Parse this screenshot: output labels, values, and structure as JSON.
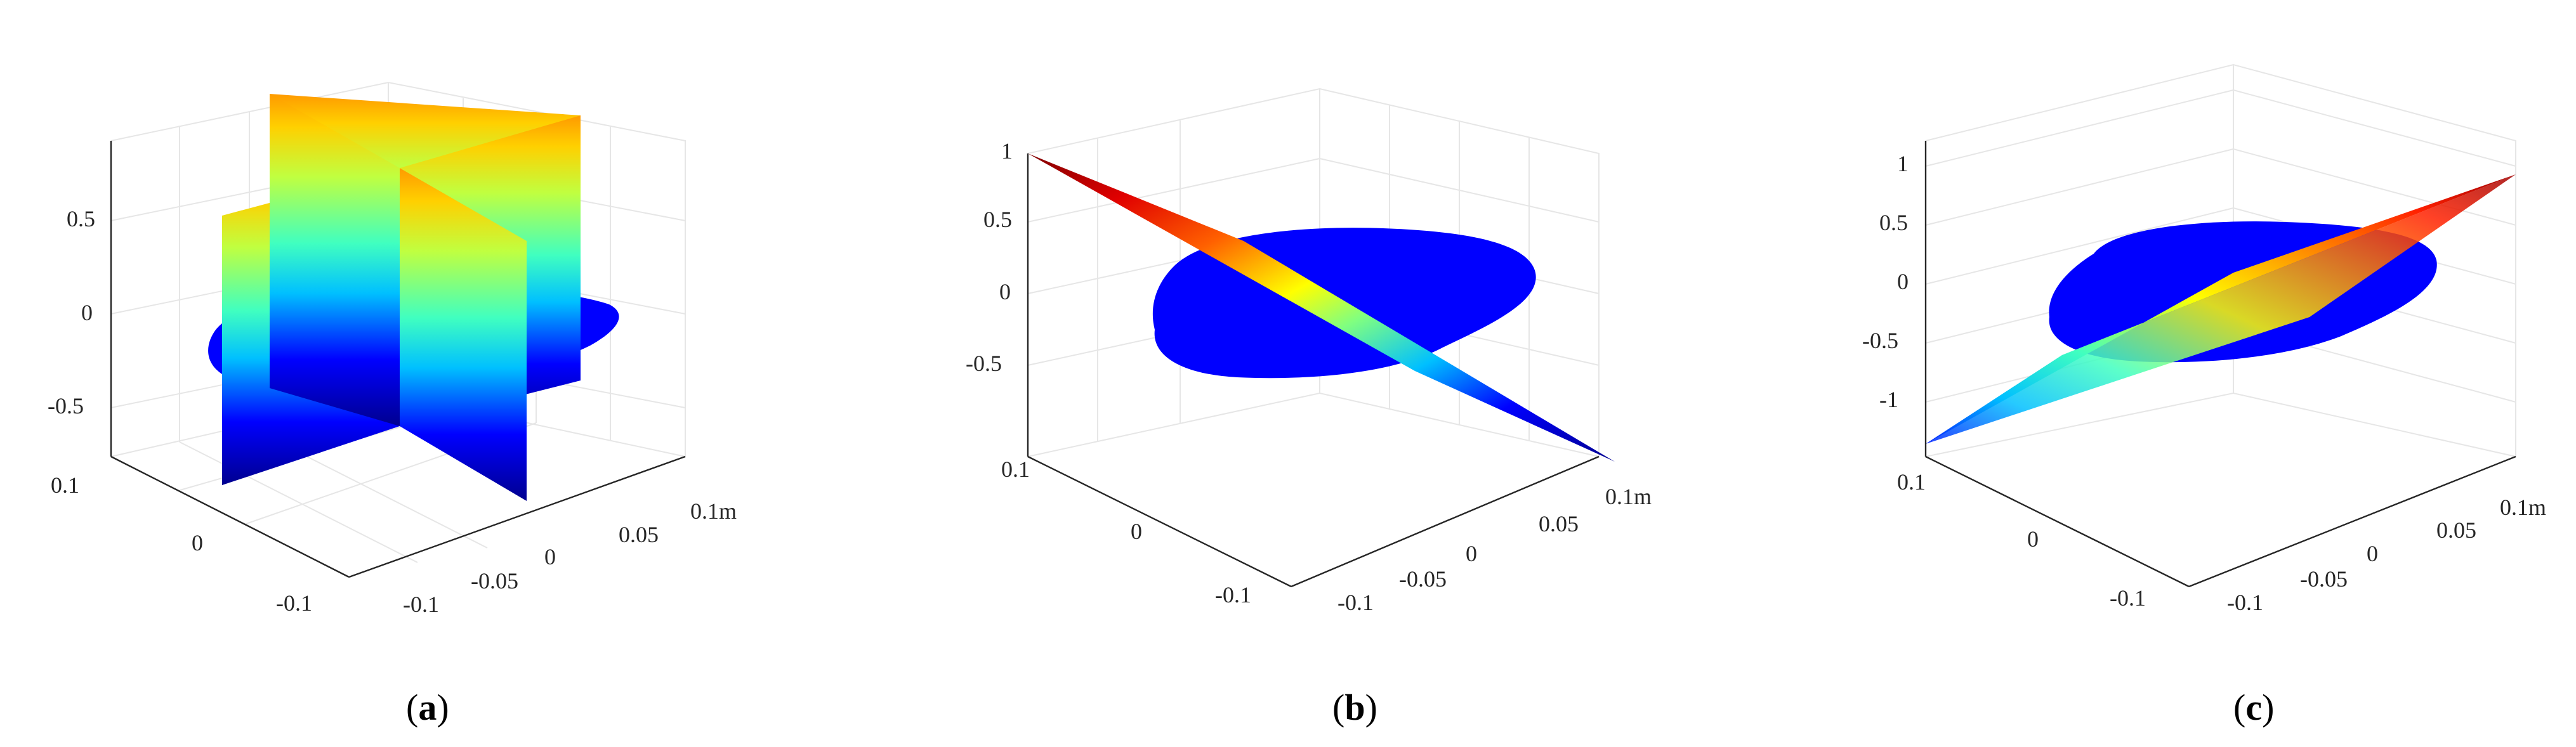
{
  "figure": {
    "layout": "three 3D surface plots side by side with subfigure captions"
  },
  "chart_data": [
    {
      "type": "surface3d",
      "panel_label": "a",
      "x_ticks": [
        "-0.1",
        "-0.05",
        "0",
        "0.05",
        "0.1"
      ],
      "x_unit": "m",
      "y_ticks": [
        "-0.1",
        "0",
        "0.1"
      ],
      "z_ticks": [
        "-0.5",
        "0",
        "0.5"
      ],
      "xlim": [
        -0.12,
        0.12
      ],
      "ylim": [
        -0.14,
        0.14
      ],
      "zlim": [
        -0.75,
        0.85
      ],
      "grid": true,
      "content": "two vertical orthogonal planes over a blue point cloud",
      "colormap": "jet"
    },
    {
      "type": "surface3d",
      "panel_label": "b",
      "x_ticks": [
        "-0.1",
        "-0.05",
        "0",
        "0.05",
        "0.1"
      ],
      "x_unit": "m",
      "y_ticks": [
        "-0.1",
        "0",
        "0.1"
      ],
      "z_ticks": [
        "-0.5",
        "0",
        "0.5",
        "1"
      ],
      "xlim": [
        -0.12,
        0.12
      ],
      "ylim": [
        -0.14,
        0.14
      ],
      "zlim": [
        -0.85,
        1.0
      ],
      "grid": true,
      "content": "steep tilted plane crossing a blue point cloud",
      "colormap": "jet"
    },
    {
      "type": "surface3d",
      "panel_label": "c",
      "x_ticks": [
        "-0.1",
        "-0.05",
        "0",
        "0.05",
        "0.1"
      ],
      "x_unit": "m",
      "y_ticks": [
        "-0.1",
        "0",
        "0.1"
      ],
      "z_ticks": [
        "-1",
        "-0.5",
        "0",
        "0.5",
        "1"
      ],
      "xlim": [
        -0.12,
        0.12
      ],
      "ylim": [
        -0.14,
        0.14
      ],
      "zlim": [
        -1.2,
        1.3
      ],
      "grid": true,
      "content": "shallow tilted plane through a blue point cloud",
      "colormap": "jet"
    }
  ],
  "captions": [
    {
      "open": "(",
      "label": "a",
      "close": ")"
    },
    {
      "open": "(",
      "label": "b",
      "close": ")"
    },
    {
      "open": "(",
      "label": "c",
      "close": ")"
    }
  ],
  "colors": {
    "cloud": "#0000ff",
    "axis": "#262626",
    "grid": "#e6e6e6",
    "jet": [
      "#00008f",
      "#0000ff",
      "#0080ff",
      "#00ffff",
      "#80ff80",
      "#ffff00",
      "#ff8000",
      "#ff0000",
      "#800000"
    ]
  }
}
